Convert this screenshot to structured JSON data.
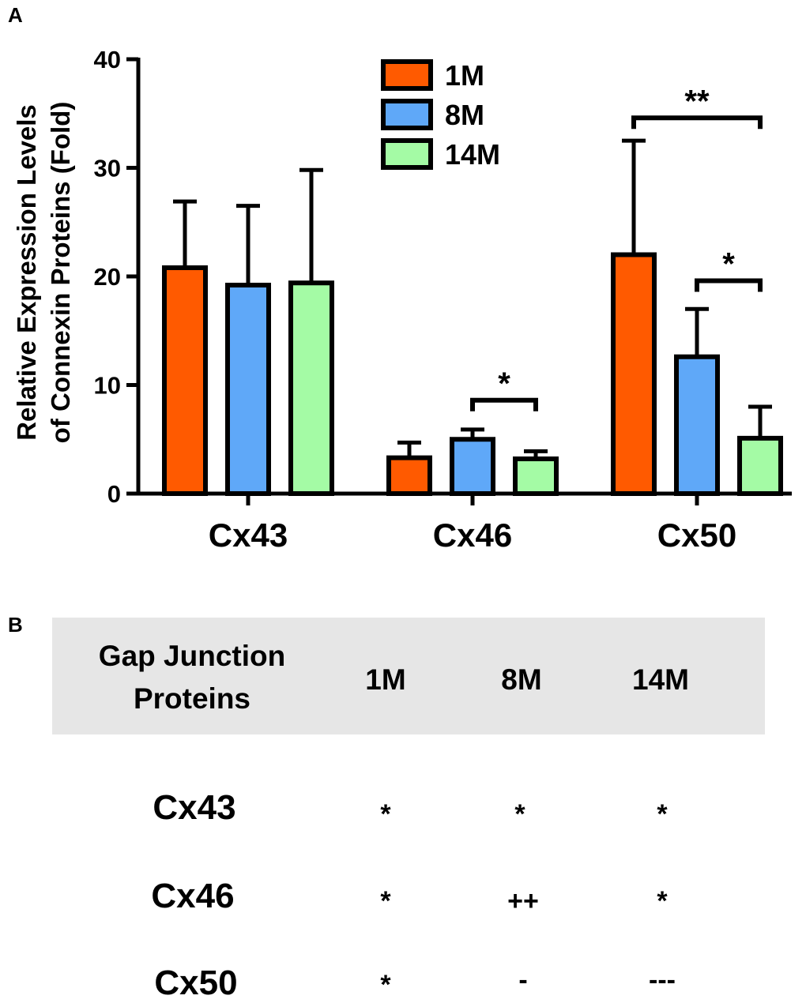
{
  "panel_a_label": "A",
  "panel_b_label": "B",
  "chart_data": {
    "type": "bar",
    "categories": [
      "Cx43",
      "Cx46",
      "Cx50"
    ],
    "series": [
      {
        "name": "1M",
        "color": "#ff5a00",
        "values": [
          20.8,
          3.3,
          22.0
        ],
        "errors": [
          6.1,
          1.4,
          10.5
        ]
      },
      {
        "name": "8M",
        "color": "#5fa8f8",
        "values": [
          19.2,
          5.0,
          12.6
        ],
        "errors": [
          7.3,
          0.9,
          4.4
        ]
      },
      {
        "name": "14M",
        "color": "#a4fba5",
        "values": [
          19.4,
          3.2,
          5.1
        ],
        "errors": [
          10.4,
          0.7,
          2.9
        ]
      }
    ],
    "ylabel_line1": "Relative Expression Levels",
    "ylabel_line2": "of Connexin Proteins (Fold)",
    "ylim": [
      0,
      40
    ],
    "yticks": [
      0,
      10,
      20,
      30,
      40
    ],
    "legend_position": "top-center",
    "significance": [
      {
        "category": "Cx46",
        "from": "8M",
        "to": "14M",
        "y": 8.6,
        "label": "*"
      },
      {
        "category": "Cx50",
        "from": "8M",
        "to": "14M",
        "y": 19.6,
        "label": "*"
      },
      {
        "category": "Cx50",
        "from": "1M",
        "to": "14M",
        "y": 34.6,
        "label": "**"
      }
    ]
  },
  "table": {
    "header_line1": "Gap Junction",
    "header_line2": "Proteins",
    "columns": [
      "1M",
      "8M",
      "14M"
    ],
    "rows": [
      {
        "label": "Cx43",
        "cells": [
          "*",
          "*",
          "*"
        ]
      },
      {
        "label": "Cx46",
        "cells": [
          "*",
          "++",
          "*"
        ]
      },
      {
        "label": "Cx50",
        "cells": [
          "*",
          "-",
          "---"
        ]
      }
    ]
  }
}
